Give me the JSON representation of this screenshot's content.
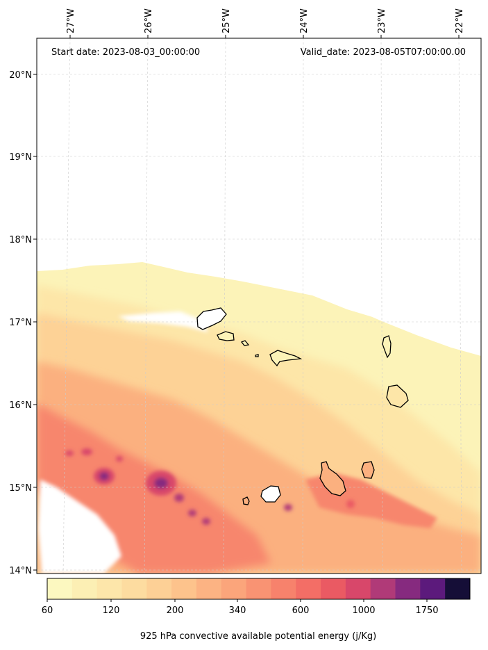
{
  "map": {
    "start_date_text": "Start date: 2023-08-03_00:00:00",
    "valid_date_text": "Valid_date: 2023-08-05T07:00:00.00",
    "lon_labels": [
      "27°W",
      "26°W",
      "25°W",
      "24°W",
      "23°W",
      "22°W"
    ],
    "lat_labels": [
      "20°N",
      "19°N",
      "18°N",
      "17°N",
      "16°N",
      "15°N",
      "14°N"
    ],
    "gridlines": true
  },
  "colorbar": {
    "title": "925 hPa convective available potential energy (j/Kg)",
    "tick_labels": [
      "60",
      "120",
      "200",
      "340",
      "600",
      "1000",
      "1750"
    ],
    "colors": [
      "#fcf8c0",
      "#fcefb4",
      "#fde6aa",
      "#fddca0",
      "#fdd096",
      "#fdc38c",
      "#fcb383",
      "#fba57b",
      "#f99373",
      "#f7826c",
      "#f36e66",
      "#ea5a63",
      "#d8476a",
      "#b03a78",
      "#862a7f",
      "#5c1a7c",
      "#150e37"
    ]
  }
}
